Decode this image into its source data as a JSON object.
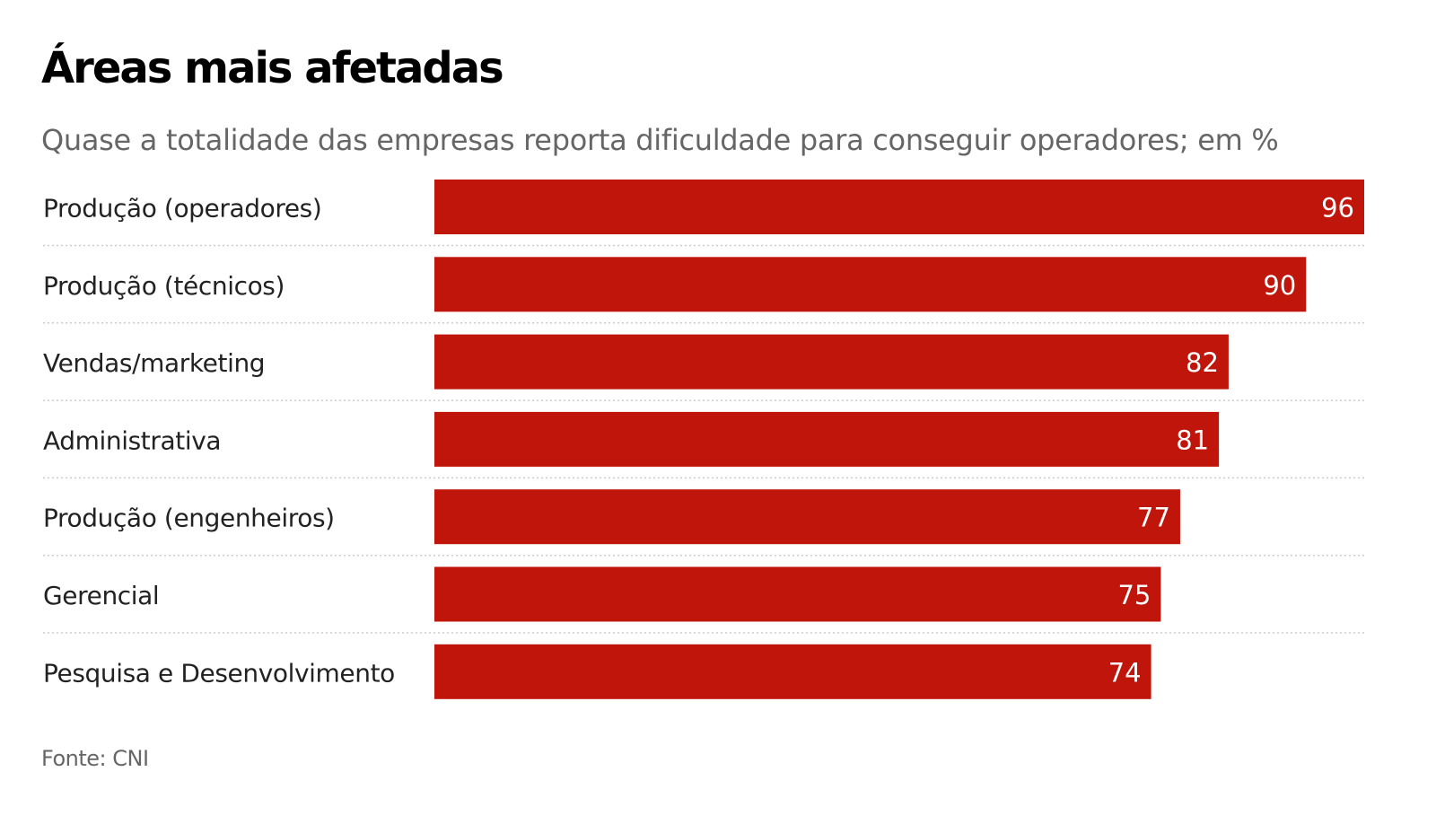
{
  "chart_data": {
    "type": "bar",
    "orientation": "horizontal",
    "title": "Áreas mais afetadas",
    "subtitle": "Quase a totalidade das empresas reporta dificuldade para conseguir operadores; em %",
    "categories": [
      "Produção (operadores)",
      "Produção (técnicos)",
      "Vendas/marketing",
      "Administrativa",
      "Produção (engenheiros)",
      "Gerencial",
      "Pesquisa e Desenvolvimento"
    ],
    "values": [
      96,
      90,
      82,
      81,
      77,
      75,
      74
    ],
    "data_labels": [
      "96",
      "90",
      "82",
      "81",
      "77",
      "75",
      "74"
    ],
    "xlim": [
      0,
      96
    ],
    "grid": false,
    "legend": "none",
    "source": "Fonte: CNI"
  },
  "colors": {
    "bar": "#c0150a",
    "bar_label": "#ffffff",
    "category_label": "#222222",
    "separator": "#cccccc"
  }
}
